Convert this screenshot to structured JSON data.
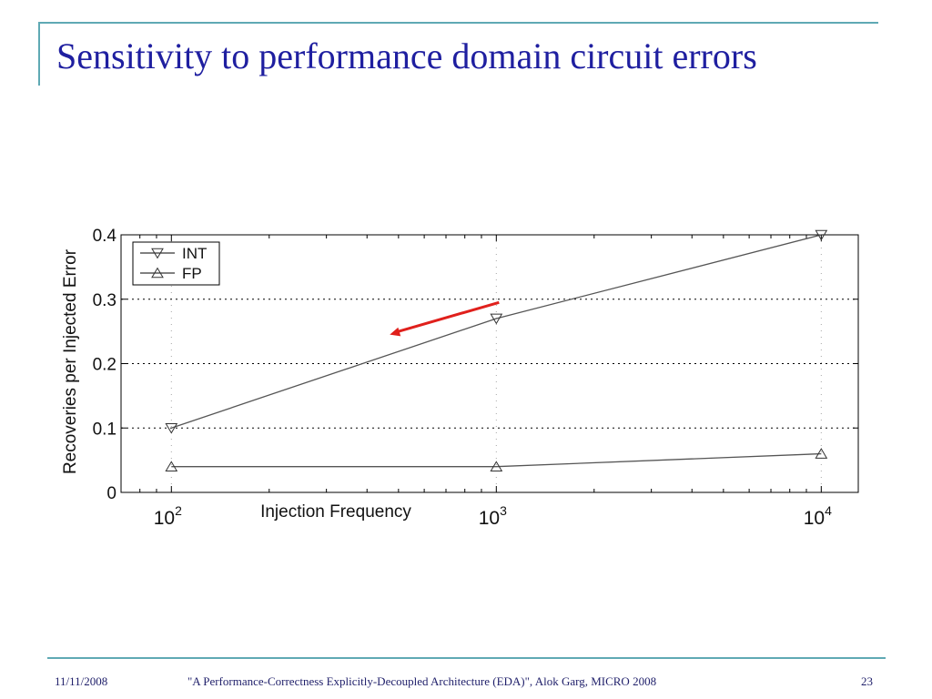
{
  "slide": {
    "title": "Sensitivity to performance domain circuit errors",
    "footer": {
      "date": "11/11/2008",
      "citation": "\"A Performance-Correctness Explicitly-Decoupled Architecture (EDA)\", Alok Garg, MICRO 2008",
      "page": "23"
    }
  },
  "colors": {
    "title": "#1f1fa0",
    "accent_rule": "#5fa9b4",
    "arrow": "#e0201c",
    "series_line": "#555555"
  },
  "chart_data": {
    "type": "line",
    "xscale": "log",
    "xlabel": "Injection Frequency",
    "ylabel": "Recoveries per Injected Error",
    "xlim": [
      70,
      13000
    ],
    "ylim": [
      0,
      0.4
    ],
    "yticks": [
      "0",
      "0.1",
      "0.2",
      "0.3",
      "0.4"
    ],
    "yticks_values": [
      0,
      0.1,
      0.2,
      0.3,
      0.4
    ],
    "xticks_values": [
      100,
      1000,
      10000
    ],
    "xticks": [
      {
        "base": "10",
        "exp": "2"
      },
      {
        "base": "10",
        "exp": "3"
      },
      {
        "base": "10",
        "exp": "4"
      }
    ],
    "grid": "horizontal-dotted",
    "legend": "top-left",
    "series": [
      {
        "name": "INT",
        "marker": "triangle-down",
        "x": [
          100,
          1000,
          10000
        ],
        "y": [
          0.1,
          0.27,
          0.4
        ]
      },
      {
        "name": "FP",
        "marker": "triangle-up",
        "x": [
          100,
          1000,
          10000
        ],
        "y": [
          0.04,
          0.04,
          0.06
        ]
      }
    ],
    "annotation": {
      "type": "arrow",
      "from": [
        1000,
        0.295
      ],
      "to": [
        470,
        0.245
      ],
      "color": "#e0201c"
    }
  }
}
